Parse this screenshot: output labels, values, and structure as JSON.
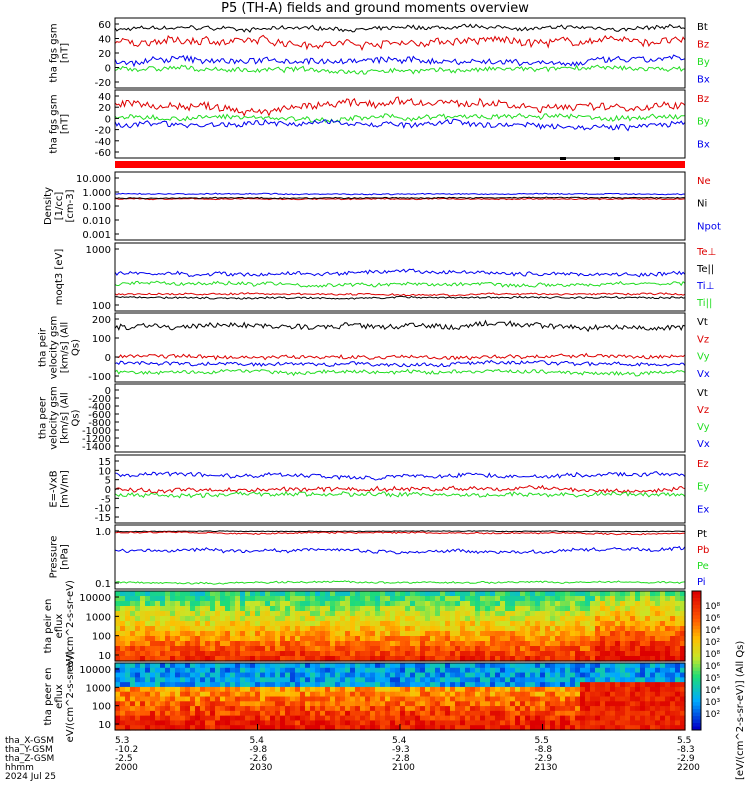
{
  "title": "P5 (TH-A) fields and ground moments overview",
  "colors": {
    "black": "#000000",
    "red": "#dd0000",
    "green": "#22dd22",
    "blue": "#0000ee"
  },
  "chart_data": [
    {
      "type": "line",
      "ylabel": "tha fgs gsm [nT]",
      "yticks": [
        "60",
        "40",
        "20",
        "0",
        "-20"
      ],
      "ylim": [
        -25,
        70
      ],
      "series": [
        {
          "name": "Bt",
          "color": "black",
          "level": 55,
          "noise": 5
        },
        {
          "name": "Bz",
          "color": "red",
          "level": 38,
          "noise": 10
        },
        {
          "name": "By",
          "color": "green",
          "level": 0,
          "noise": 6
        },
        {
          "name": "Bx",
          "color": "blue",
          "level": 12,
          "noise": 8
        }
      ]
    },
    {
      "type": "line",
      "ylabel": "tha fgs gsm [nT]",
      "yticks": [
        "40",
        "20",
        "0",
        "-20",
        "-40",
        "-60"
      ],
      "ylim": [
        -70,
        45
      ],
      "series": [
        {
          "name": "Bz",
          "color": "red",
          "level": 18,
          "noise": 12
        },
        {
          "name": "By",
          "color": "green",
          "level": -2,
          "noise": 8
        },
        {
          "name": "Bx",
          "color": "blue",
          "level": -12,
          "noise": 9
        }
      ]
    },
    {
      "type": "line",
      "ylabel": "Density [1/cc] [cm-3]",
      "yticks": [
        "10.000",
        "1.000",
        "0.100",
        "0.010",
        "0.001"
      ],
      "scale": "log",
      "series": [
        {
          "name": "Ne",
          "color": "red",
          "level": 0.9,
          "noise": 0.1
        },
        {
          "name": "Ni",
          "color": "black",
          "level": 1.0,
          "noise": 0.1
        },
        {
          "name": "Npot",
          "color": "blue",
          "level": 1.4,
          "noise": 0.1
        }
      ]
    },
    {
      "type": "line",
      "ylabel": "moqt3 [eV]",
      "yticks": [
        "1000",
        "100"
      ],
      "scale": "log",
      "series": [
        {
          "name": "Te⊥",
          "color": "red",
          "level": 2.0,
          "noise": 0.05
        },
        {
          "name": "Te||",
          "color": "black",
          "level": 1.9,
          "noise": 0.05
        },
        {
          "name": "Ti⊥",
          "color": "blue",
          "level": 2.6,
          "noise": 0.1
        },
        {
          "name": "Ti||",
          "color": "green",
          "level": 2.3,
          "noise": 0.1
        }
      ]
    },
    {
      "type": "line",
      "ylabel": "tha peir velocity gsm [km/s] (All Qs)",
      "yticks": [
        "200",
        "100",
        "0",
        "-100"
      ],
      "ylim": [
        -150,
        260
      ],
      "series": [
        {
          "name": "Vt",
          "color": "black",
          "level": 180,
          "noise": 30
        },
        {
          "name": "Vz",
          "color": "red",
          "level": 0,
          "noise": 20
        },
        {
          "name": "Vy",
          "color": "green",
          "level": -90,
          "noise": 20
        },
        {
          "name": "Vx",
          "color": "blue",
          "level": -40,
          "noise": 20
        }
      ]
    },
    {
      "type": "line",
      "ylabel": "tha peer velocity gsm [km/s] (All Qs)",
      "yticks": [
        "0",
        "-200",
        "-400",
        "-600",
        "-800",
        "-1000",
        "-1200",
        "-1400"
      ],
      "ylim": [
        -1450,
        20
      ],
      "series": [
        {
          "name": "Vt",
          "color": "black"
        },
        {
          "name": "Vz",
          "color": "red"
        },
        {
          "name": "Vy",
          "color": "green"
        },
        {
          "name": "Vx",
          "color": "blue"
        }
      ]
    },
    {
      "type": "line",
      "ylabel": "E=-VxB [mV/m]",
      "yticks": [
        "15",
        "10",
        "5",
        "0",
        "-5",
        "-10",
        "-15"
      ],
      "ylim": [
        -17,
        17
      ],
      "series": [
        {
          "name": "Ez",
          "color": "red",
          "level": 0,
          "noise": 2
        },
        {
          "name": "Ey",
          "color": "green",
          "level": -3,
          "noise": 2
        },
        {
          "name": "Ex",
          "color": "blue",
          "level": 7,
          "noise": 2
        }
      ]
    },
    {
      "type": "line",
      "ylabel": "Pressure [nPa]",
      "yticks": [
        "1.0",
        "0.1"
      ],
      "scale": "log",
      "series": [
        {
          "name": "Pt",
          "color": "black",
          "level": 0.1,
          "noise": 0.02
        },
        {
          "name": "Pb",
          "color": "red",
          "level": 0.05,
          "noise": 0.04
        },
        {
          "name": "Pe",
          "color": "green",
          "level": -1.5,
          "noise": 0.05
        },
        {
          "name": "Pi",
          "color": "blue",
          "level": -0.5,
          "noise": 0.1
        }
      ]
    },
    {
      "type": "heatmap",
      "ylabel": "tha peir en eflux eV/(cm^2-s-sr-eV)",
      "yticks": [
        "10000",
        "1000",
        "100",
        "10"
      ]
    },
    {
      "type": "heatmap",
      "ylabel": "tha peer en eflux eV/(cm^2-s-sr-eV)",
      "yticks": [
        "10000",
        "1000",
        "100",
        "10"
      ]
    }
  ],
  "colorbar": {
    "label": "[eV/(cm^2-s-sr-eV)] (All Qs)",
    "ticks": [
      "10⁸",
      "10⁶",
      "10⁴",
      "10²",
      "10⁸",
      "10⁶",
      "10⁵",
      "10⁴",
      "10³",
      "10²"
    ]
  },
  "xaxis": {
    "row_labels": [
      "tha_X-GSM",
      "tha_Y-GSM",
      "tha_Z-GSM",
      "hhmm",
      "2024 Jul 25"
    ],
    "columns": [
      [
        "5.3",
        "-10.2",
        "-2.5",
        "2000"
      ],
      [
        "5.4",
        "-9.8",
        "-2.6",
        "2030"
      ],
      [
        "5.4",
        "-9.3",
        "-2.8",
        "2100"
      ],
      [
        "5.5",
        "-8.8",
        "-2.9",
        "2130"
      ],
      [
        "5.5",
        "-8.3",
        "-2.9",
        "2200"
      ]
    ]
  }
}
